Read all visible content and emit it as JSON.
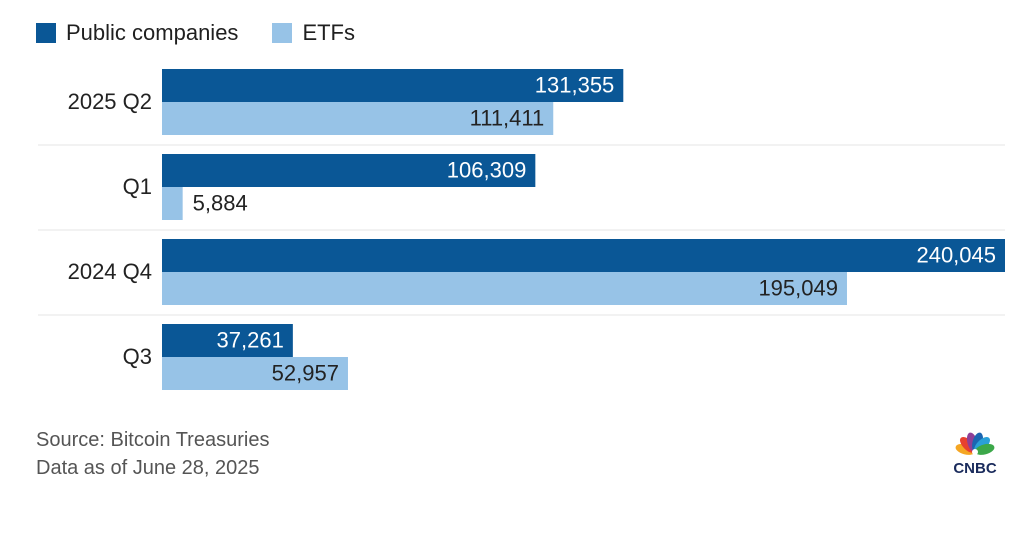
{
  "legend": {
    "items": [
      {
        "label": "Public companies",
        "color": "#0a5796"
      },
      {
        "label": "ETFs",
        "color": "#97c3e7"
      }
    ]
  },
  "chart_data": {
    "type": "bar",
    "orientation": "horizontal",
    "categories": [
      "2025 Q2",
      "Q1",
      "2024 Q4",
      "Q3"
    ],
    "series": [
      {
        "name": "Public companies",
        "color": "#0a5796",
        "values": [
          131355,
          106309,
          240045,
          37261
        ]
      },
      {
        "name": "ETFs",
        "color": "#97c3e7",
        "values": [
          111411,
          5884,
          195049,
          52957
        ]
      }
    ],
    "value_labels": {
      "Public companies": [
        "131,355",
        "106,309",
        "240,045",
        "37,261"
      ],
      "ETFs": [
        "111,411",
        "5,884",
        "195,049",
        "52,957"
      ]
    },
    "xlim": [
      0,
      240045
    ],
    "grid": false,
    "legend_position": "top-left",
    "title": "",
    "xlabel": "",
    "ylabel": ""
  },
  "footer": {
    "source": "Source: Bitcoin Treasuries",
    "data_note": "Data as of June 28, 2025",
    "logo_text": "CNBC"
  }
}
